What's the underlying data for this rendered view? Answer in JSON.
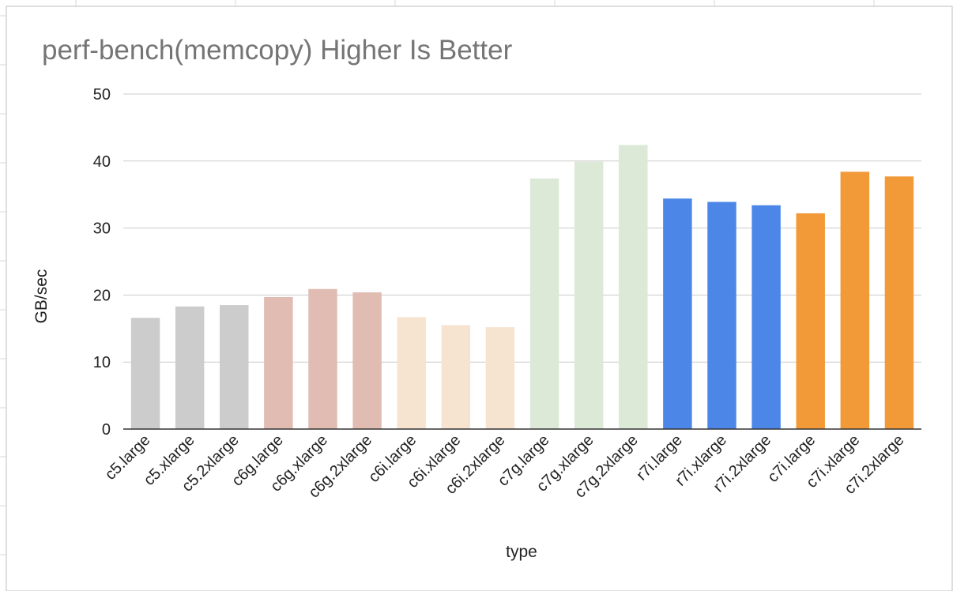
{
  "chart_data": {
    "type": "bar",
    "title": "perf-bench(memcopy) Higher Is Better",
    "xlabel": "type",
    "ylabel": "GB/sec",
    "ylim": [
      0,
      50
    ],
    "yticks": [
      0,
      10,
      20,
      30,
      40,
      50
    ],
    "grid": true,
    "legend": "none",
    "categories": [
      "c5.large",
      "c5.xlarge",
      "c5.2xlarge",
      "c6g.large",
      "c6g.xlarge",
      "c6g.2xlarge",
      "c6i.large",
      "c6i.xlarge",
      "c6i.2xlarge",
      "c7g.large",
      "c7g.xlarge",
      "c7g.2xlarge",
      "r7i.large",
      "r7i.xlarge",
      "r7i.2xlarge",
      "c7i.large",
      "c7i.xlarge",
      "c7i.2xlarge"
    ],
    "values": [
      16.6,
      18.3,
      18.5,
      19.7,
      20.9,
      20.4,
      16.7,
      15.5,
      15.2,
      37.4,
      39.9,
      42.4,
      34.4,
      33.9,
      33.4,
      32.2,
      38.4,
      37.7
    ],
    "bar_colors": [
      "#cccccc",
      "#cccccc",
      "#cccccc",
      "#e0bcb3",
      "#e0bcb3",
      "#e0bcb3",
      "#f6e4d1",
      "#f6e4d1",
      "#f6e4d1",
      "#dce9d6",
      "#dce9d6",
      "#dce9d6",
      "#4c87e8",
      "#4c87e8",
      "#4c87e8",
      "#f29a38",
      "#f29a38",
      "#f29a38"
    ],
    "title_color": "#757575",
    "grid_color": "#cccccc",
    "axis_color": "#333333",
    "background_grid_color": "#d9d9d9",
    "frame_color": "#bdbdbd"
  }
}
